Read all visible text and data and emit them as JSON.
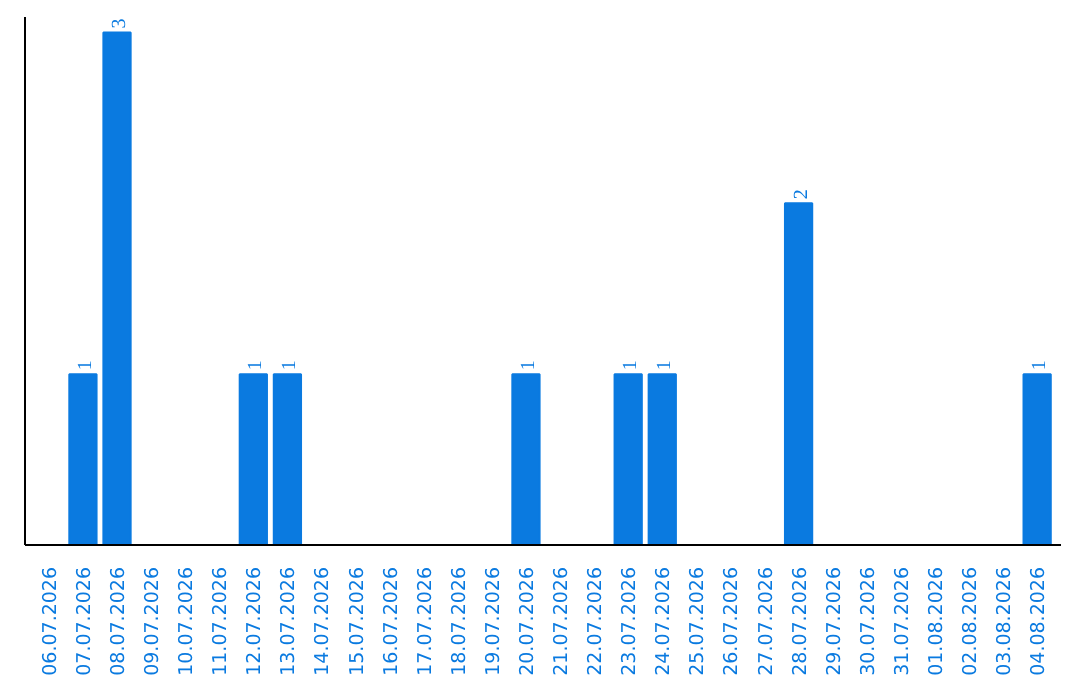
{
  "chart_data": {
    "type": "bar",
    "categories": [
      "06.07.2026",
      "07.07.2026",
      "08.07.2026",
      "09.07.2026",
      "10.07.2026",
      "11.07.2026",
      "12.07.2026",
      "13.07.2026",
      "14.07.2026",
      "15.07.2026",
      "16.07.2026",
      "17.07.2026",
      "18.07.2026",
      "19.07.2026",
      "20.07.2026",
      "21.07.2026",
      "22.07.2026",
      "23.07.2026",
      "24.07.2026",
      "25.07.2026",
      "26.07.2026",
      "27.07.2026",
      "28.07.2026",
      "29.07.2026",
      "30.07.2026",
      "31.07.2026",
      "01.08.2026",
      "02.08.2026",
      "03.08.2026",
      "04.08.2026"
    ],
    "values": [
      0,
      1,
      3,
      0,
      0,
      0,
      1,
      1,
      0,
      0,
      0,
      0,
      0,
      0,
      1,
      0,
      0,
      1,
      1,
      0,
      0,
      0,
      2,
      0,
      0,
      0,
      0,
      0,
      0,
      1
    ],
    "value_labels": [
      null,
      "1",
      "3",
      null,
      null,
      null,
      "1",
      "1",
      null,
      null,
      null,
      null,
      null,
      null,
      "1",
      null,
      null,
      "1",
      "1",
      null,
      null,
      null,
      "2",
      null,
      null,
      null,
      null,
      null,
      null,
      "1"
    ],
    "color": "#0a7ae0",
    "grid": false,
    "tick_labels": "x"
  }
}
